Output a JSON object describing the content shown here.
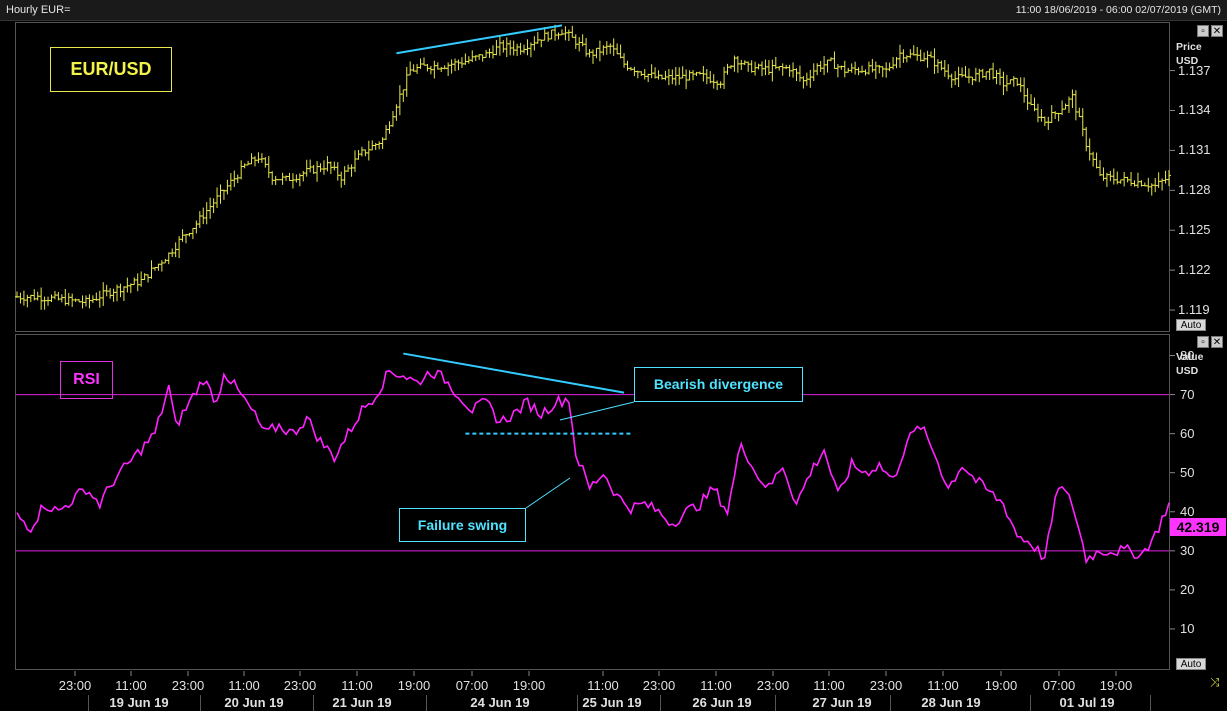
{
  "topbar": {
    "title": "Hourly EUR=",
    "range": "11:00 18/06/2019 - 06:00 02/07/2019 (GMT)"
  },
  "price_pane": {
    "unit_line1": "Price",
    "unit_line2": "USD",
    "auto": "Auto",
    "label": "EUR/USD"
  },
  "rsi_pane": {
    "unit_line1": "Value",
    "unit_line2": "USD",
    "auto": "Auto",
    "label": "RSI",
    "current_value": "42.319"
  },
  "annotations": {
    "bearish": "Bearish divergence",
    "failure": "Failure swing"
  },
  "chart_data": [
    {
      "type": "ohlc",
      "title": "EUR/USD",
      "ylabel": "Price USD",
      "ylim": [
        1.1175,
        1.1405
      ],
      "yticks": [
        "1.137",
        "1.134",
        "1.131",
        "1.128",
        "1.125",
        "1.122",
        "1.119"
      ],
      "series": [
        {
          "name": "EUR/USD",
          "color": "#e8e84a",
          "anchors": [
            [
              0,
              1.12
            ],
            [
              6,
              1.12
            ],
            [
              12,
              1.1198
            ],
            [
              20,
              1.1196
            ],
            [
              28,
              1.1205
            ],
            [
              36,
              1.1212
            ],
            [
              44,
              1.1232
            ],
            [
              48,
              1.1245
            ],
            [
              52,
              1.1255
            ],
            [
              56,
              1.1268
            ],
            [
              60,
              1.128
            ],
            [
              66,
              1.1298
            ],
            [
              70,
              1.1305
            ],
            [
              74,
              1.129
            ],
            [
              78,
              1.1288
            ],
            [
              84,
              1.1294
            ],
            [
              90,
              1.1299
            ],
            [
              94,
              1.129
            ],
            [
              100,
              1.1308
            ],
            [
              106,
              1.1318
            ],
            [
              110,
              1.1345
            ],
            [
              114,
              1.137
            ],
            [
              118,
              1.1373
            ],
            [
              124,
              1.1374
            ],
            [
              130,
              1.1377
            ],
            [
              136,
              1.1382
            ],
            [
              140,
              1.1388
            ],
            [
              146,
              1.1387
            ],
            [
              152,
              1.1395
            ],
            [
              158,
              1.14
            ],
            [
              162,
              1.1392
            ],
            [
              166,
              1.1382
            ],
            [
              172,
              1.1388
            ],
            [
              176,
              1.1375
            ],
            [
              180,
              1.137
            ],
            [
              186,
              1.1364
            ],
            [
              192,
              1.1365
            ],
            [
              198,
              1.1366
            ],
            [
              204,
              1.1362
            ],
            [
              208,
              1.138
            ],
            [
              212,
              1.1372
            ],
            [
              218,
              1.1371
            ],
            [
              224,
              1.1372
            ],
            [
              228,
              1.1362
            ],
            [
              232,
              1.1373
            ],
            [
              236,
              1.1376
            ],
            [
              240,
              1.137
            ],
            [
              246,
              1.1371
            ],
            [
              252,
              1.137
            ],
            [
              256,
              1.1383
            ],
            [
              260,
              1.1381
            ],
            [
              264,
              1.138
            ],
            [
              268,
              1.1372
            ],
            [
              272,
              1.1364
            ],
            [
              278,
              1.1366
            ],
            [
              282,
              1.137
            ],
            [
              286,
              1.136
            ],
            [
              290,
              1.1362
            ],
            [
              294,
              1.1342
            ],
            [
              298,
              1.1332
            ],
            [
              302,
              1.134
            ],
            [
              306,
              1.135
            ],
            [
              310,
              1.1315
            ],
            [
              314,
              1.129
            ],
            [
              320,
              1.1288
            ],
            [
              326,
              1.1286
            ],
            [
              330,
              1.1283
            ],
            [
              334,
              1.129
            ]
          ]
        }
      ]
    },
    {
      "type": "line",
      "title": "RSI",
      "ylabel": "Value USD",
      "ylim": [
        0,
        85
      ],
      "yticks": [
        80,
        70,
        60,
        50,
        40,
        30,
        20,
        10
      ],
      "reference_lines": [
        70,
        30
      ],
      "series": [
        {
          "name": "RSI",
          "color": "#ff22ff",
          "anchors": [
            [
              0,
              39
            ],
            [
              4,
              36
            ],
            [
              8,
              42
            ],
            [
              12,
              40
            ],
            [
              16,
              43
            ],
            [
              20,
              46
            ],
            [
              24,
              42
            ],
            [
              28,
              48
            ],
            [
              32,
              52
            ],
            [
              36,
              56
            ],
            [
              40,
              60
            ],
            [
              44,
              72
            ],
            [
              46,
              62
            ],
            [
              50,
              68
            ],
            [
              54,
              74
            ],
            [
              58,
              68
            ],
            [
              60,
              76
            ],
            [
              64,
              71
            ],
            [
              68,
              66
            ],
            [
              72,
              60
            ],
            [
              76,
              62
            ],
            [
              80,
              60
            ],
            [
              84,
              64
            ],
            [
              88,
              58
            ],
            [
              92,
              54
            ],
            [
              96,
              60
            ],
            [
              100,
              66
            ],
            [
              104,
              70
            ],
            [
              108,
              76
            ],
            [
              112,
              75
            ],
            [
              116,
              73
            ],
            [
              120,
              76
            ],
            [
              124,
              74
            ],
            [
              128,
              70
            ],
            [
              132,
              66
            ],
            [
              136,
              68
            ],
            [
              140,
              63
            ],
            [
              144,
              65
            ],
            [
              148,
              68
            ],
            [
              152,
              65
            ],
            [
              156,
              68
            ],
            [
              160,
              69
            ],
            [
              162,
              55
            ],
            [
              166,
              46
            ],
            [
              170,
              50
            ],
            [
              174,
              44
            ],
            [
              178,
              41
            ],
            [
              182,
              42
            ],
            [
              186,
              40
            ],
            [
              190,
              37
            ],
            [
              194,
              40
            ],
            [
              198,
              42
            ],
            [
              202,
              46
            ],
            [
              206,
              40
            ],
            [
              210,
              58
            ],
            [
              214,
              50
            ],
            [
              218,
              46
            ],
            [
              222,
              52
            ],
            [
              226,
              42
            ],
            [
              230,
              50
            ],
            [
              234,
              56
            ],
            [
              238,
              44
            ],
            [
              242,
              52
            ],
            [
              246,
              50
            ],
            [
              250,
              52
            ],
            [
              254,
              48
            ],
            [
              258,
              58
            ],
            [
              262,
              62
            ],
            [
              266,
              55
            ],
            [
              270,
              46
            ],
            [
              274,
              52
            ],
            [
              278,
              48
            ],
            [
              282,
              45
            ],
            [
              286,
              42
            ],
            [
              290,
              34
            ],
            [
              294,
              32
            ],
            [
              298,
              28
            ],
            [
              302,
              47
            ],
            [
              306,
              42
            ],
            [
              310,
              28
            ],
            [
              314,
              30
            ],
            [
              318,
              30
            ],
            [
              322,
              30
            ],
            [
              326,
              29
            ],
            [
              330,
              34
            ],
            [
              334,
              42.319
            ]
          ]
        }
      ]
    }
  ],
  "x_axis": {
    "ticks": [
      "23:00",
      "11:00",
      "23:00",
      "11:00",
      "23:00",
      "11:00",
      "19:00",
      "07:00",
      "19:00",
      "11:00",
      "23:00",
      "11:00",
      "23:00",
      "11:00",
      "23:00",
      "11:00",
      "19:00",
      "07:00",
      "19:00"
    ],
    "dates": [
      "19 Jun 19",
      "20 Jun 19",
      "21 Jun 19",
      "24 Jun 19",
      "25 Jun 19",
      "26 Jun 19",
      "27 Jun 19",
      "28 Jun 19",
      "01 Jul 19"
    ]
  }
}
